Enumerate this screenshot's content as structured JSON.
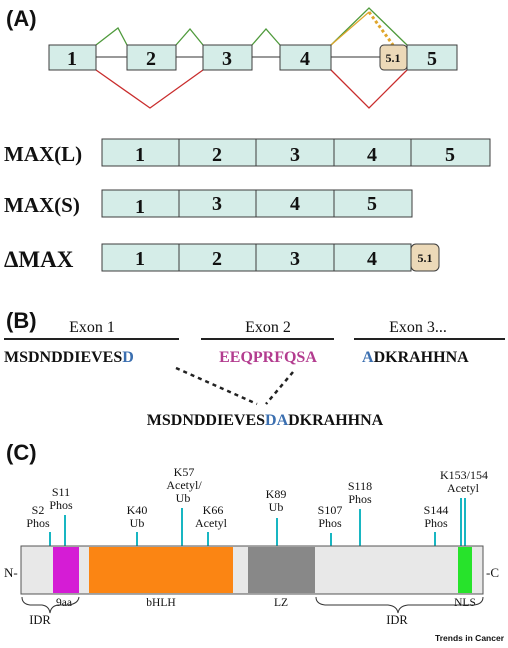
{
  "panels": {
    "a_label": "(A)",
    "b_label": "(B)",
    "c_label": "(C)"
  },
  "panel_a": {
    "gene_exons": [
      "1",
      "2",
      "3",
      "4",
      "5.1",
      "5"
    ],
    "isoforms": [
      {
        "name": "MAX(L)",
        "exons": [
          "1",
          "2",
          "3",
          "4",
          "5"
        ]
      },
      {
        "name": "MAX(S)",
        "exons": [
          "1",
          "3",
          "4",
          "5"
        ]
      },
      {
        "name": "ΔMAX",
        "exons": [
          "1",
          "2",
          "3",
          "4"
        ],
        "extra_exon": "5.1"
      }
    ]
  },
  "panel_b": {
    "exon_headers": [
      "Exon 1",
      "Exon 2",
      "Exon 3..."
    ],
    "exon1_seq": "MSDNDDIEVES",
    "exon1_last": "D",
    "exon2_seq": "EEQPRFQSA",
    "exon3_first": "A",
    "exon3_seq": "DKRAHHNA",
    "spliced_prefix": "MSDNDDIEVES",
    "spliced_junction": "DA",
    "spliced_suffix": "DKRAHHNA"
  },
  "panel_c": {
    "n_term": "N-",
    "c_term": "-C",
    "ptm_sites": [
      {
        "site": "S2",
        "mod": "Phos"
      },
      {
        "site": "S11",
        "mod": "Phos"
      },
      {
        "site": "K40",
        "mod": "Ub"
      },
      {
        "site": "K57",
        "mod": "Acetyl/",
        "mod2": "Ub"
      },
      {
        "site": "K66",
        "mod": "Acetyl"
      },
      {
        "site": "K89",
        "mod": "Ub"
      },
      {
        "site": "S107",
        "mod": "Phos"
      },
      {
        "site": "S118",
        "mod": "Phos"
      },
      {
        "site": "S144",
        "mod": "Phos"
      },
      {
        "site": "K153/154",
        "mod": "Acetyl"
      }
    ],
    "domains": {
      "ninea": "9aa",
      "bhlh": "bHLH",
      "lz": "LZ",
      "nls": "NLS",
      "idr1": "IDR",
      "idr2": "IDR"
    }
  },
  "footer": "Trends in Cancer",
  "colors": {
    "exon_fill": "#d5ede8",
    "exon_stroke": "#3d3d3d",
    "exon51_fill": "#ecd9b8",
    "splice_green": "#4f9a3c",
    "splice_red": "#c92d2d",
    "splice_dotted": "#e0a62c",
    "blue": "#3b6fb0",
    "magenta": "#b33c8f",
    "ptm_line": "#18b6c2",
    "domain_grey": "#e8e8e8",
    "domain_9aa": "#d51cd5",
    "domain_bhlh": "#fb8513",
    "domain_lz": "#888888",
    "domain_nls": "#27e32b"
  }
}
